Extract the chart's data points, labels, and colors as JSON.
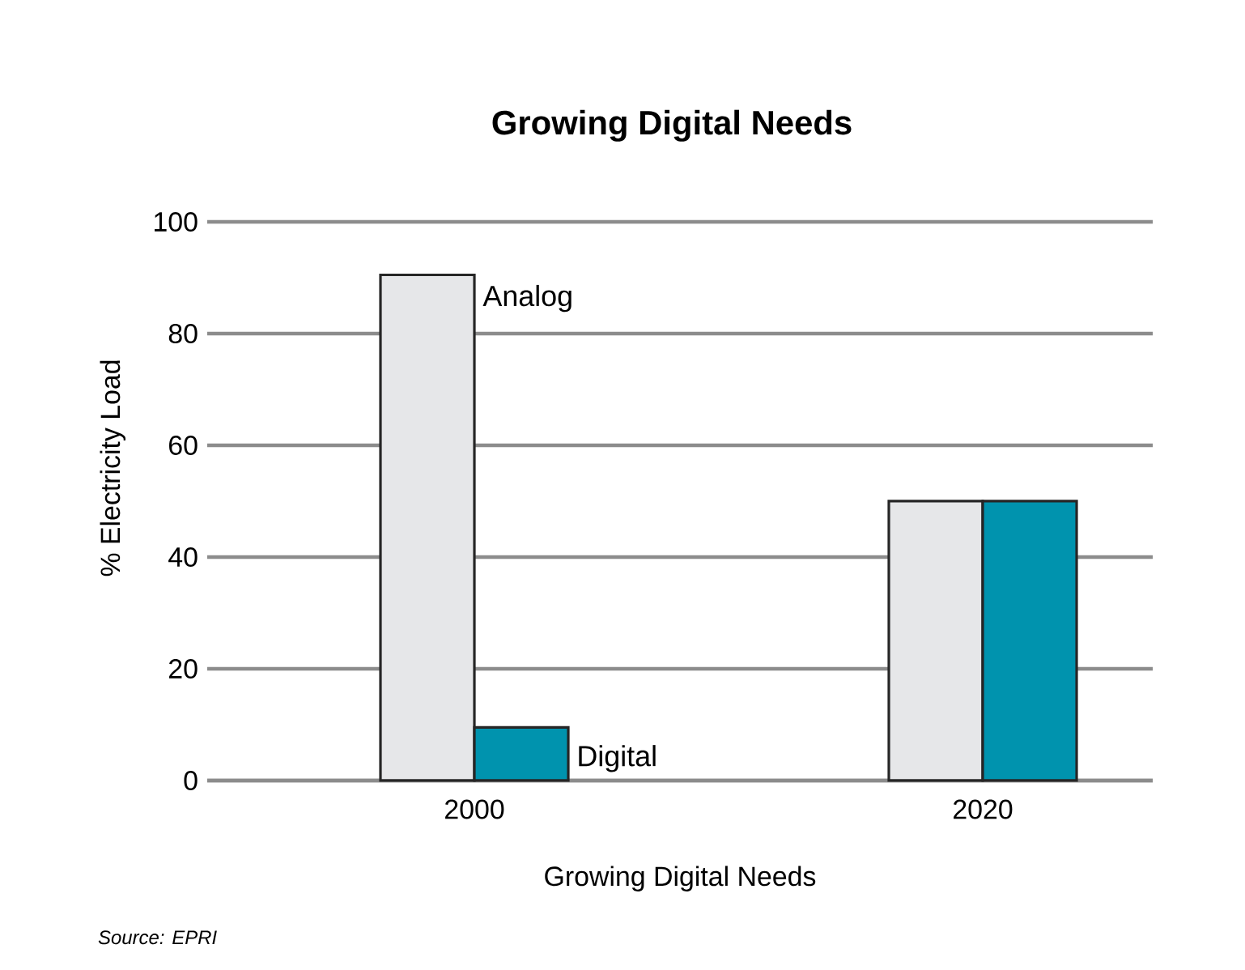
{
  "chart_data": {
    "type": "bar",
    "title": "Growing Digital Needs",
    "xlabel": "Growing Digital Needs",
    "ylabel": "% Electricity Load",
    "categories": [
      "2000",
      "2020"
    ],
    "series": [
      {
        "name": "Analog",
        "color": "#e6e7e9",
        "values": [
          90.5,
          50
        ]
      },
      {
        "name": "Digital",
        "color": "#0093ae",
        "values": [
          9.5,
          50
        ]
      }
    ],
    "ylim": [
      0,
      100
    ],
    "yticks": [
      0,
      20,
      40,
      60,
      80,
      100
    ],
    "grid": "y",
    "legend": false,
    "annotations": [
      "Source: EPRI"
    ]
  }
}
